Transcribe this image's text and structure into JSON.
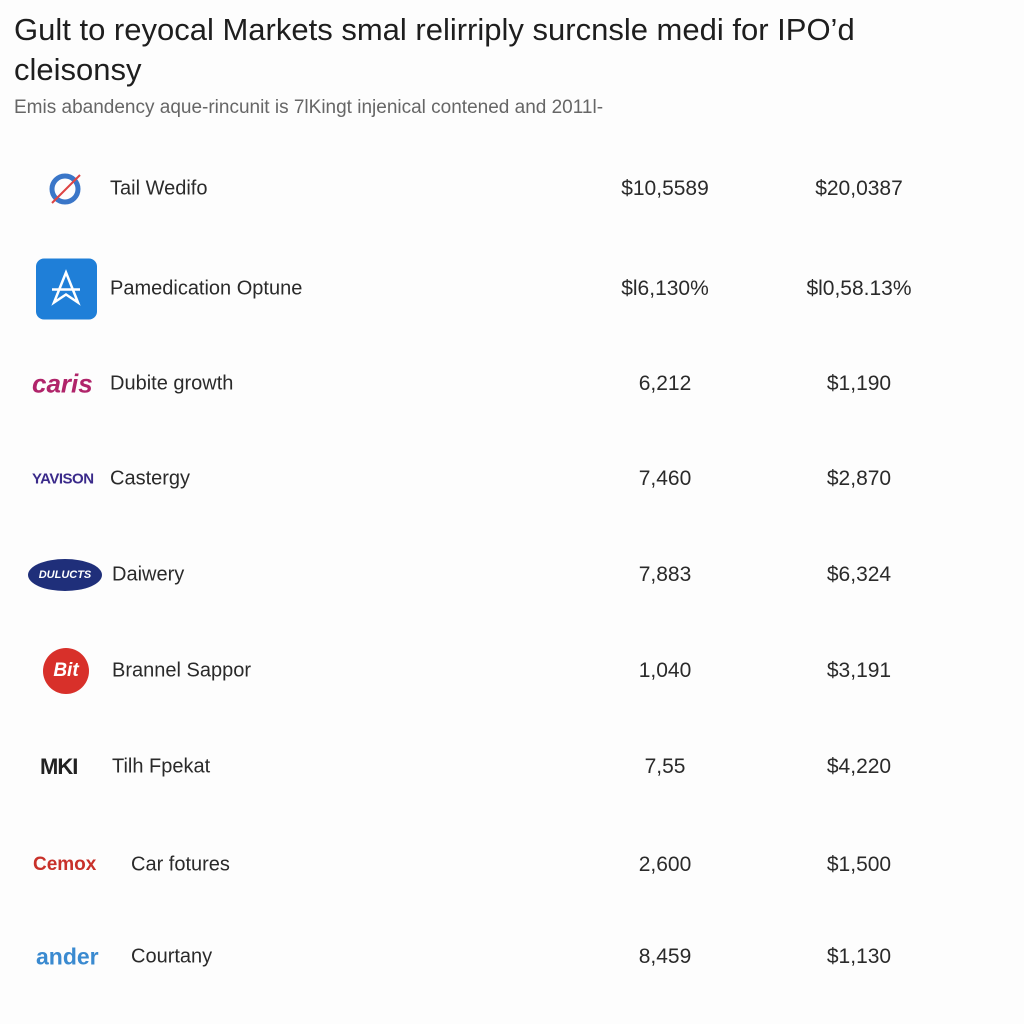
{
  "header": {
    "title": "Gult to reyocal Markets smal relirriply surcnsle medi for IPO’d cleisonsy",
    "subtitle": "Emis abandency aque-rincunit is 7lKingt injenical contened and 2011l-"
  },
  "rows": [
    {
      "name": "Tail Wedifo",
      "col1": "$10,5589",
      "col2": "$20,0387"
    },
    {
      "name": "Pamedication Optune",
      "col1": "$l6,130%",
      "col2": "$l0,58.13%"
    },
    {
      "logo": "caris",
      "name": "Dubite growth",
      "col1": "6,212",
      "col2": "$1,190"
    },
    {
      "logo": "YAVISON",
      "name": "Castergy",
      "col1": "7,460",
      "col2": "$2,870"
    },
    {
      "logo": "DULUCTS",
      "name": "Daiwery",
      "col1": "7,883",
      "col2": "$6,324"
    },
    {
      "logo": "Bit",
      "name": "Brannel Sappor",
      "col1": "1,040",
      "col2": "$3,191"
    },
    {
      "logo": "MKI",
      "name": "Tilh Fpekat",
      "col1": "7,55",
      "col2": "$4,220"
    },
    {
      "logo": "Cemox",
      "name": "Car fotures",
      "col1": "2,600",
      "col2": "$1,500"
    },
    {
      "logo": "ander",
      "name": "Courtany",
      "col1": "8,459",
      "col2": "$1,130"
    }
  ]
}
